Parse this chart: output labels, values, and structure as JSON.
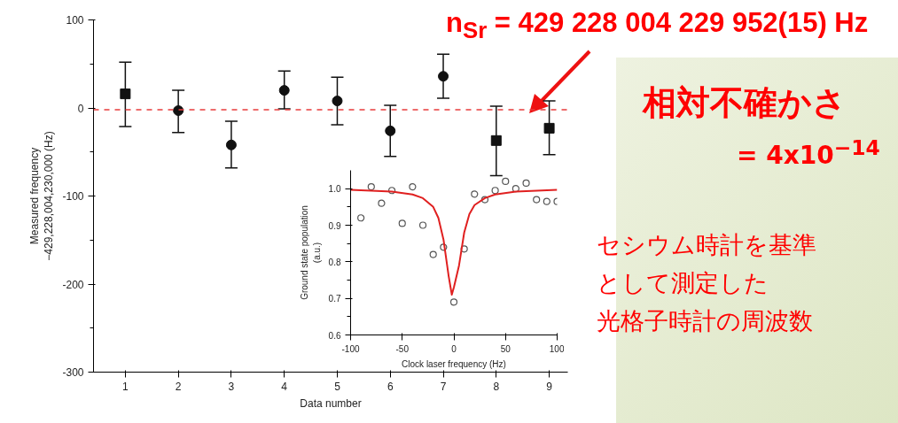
{
  "chart_data": [
    {
      "type": "scatter",
      "title": "n$_{Sr}$ = 429 228 004 229 952(15) Hz",
      "xlabel": "Data number",
      "ylabel": "Measured frequency\n−429,228,004,230,000 (Hz)",
      "xlim": [
        0.4,
        9.35
      ],
      "xticks": [
        1,
        2,
        3,
        4,
        5,
        6,
        7,
        8,
        9
      ],
      "ylim": [
        -300,
        100
      ],
      "yticks": [
        -300,
        -200,
        -100,
        0,
        100
      ],
      "grid": false,
      "series": [
        {
          "color": "#111111",
          "marker": "square",
          "x": [
            1,
            8,
            9
          ],
          "values": [
            16,
            -37,
            -23
          ],
          "errors": [
            [
              -21,
              52
            ],
            [
              -77,
              2
            ],
            [
              -53,
              8
            ]
          ]
        },
        {
          "color": "#111111",
          "marker": "circle",
          "x": [
            2,
            3,
            4,
            5,
            6,
            7
          ],
          "values": [
            -3,
            -42,
            20,
            8,
            -26,
            36
          ],
          "errors": [
            [
              -28,
              20
            ],
            [
              -68,
              -15
            ],
            [
              -1,
              42
            ],
            [
              -19,
              35
            ],
            [
              -55,
              3
            ],
            [
              11,
              61
            ]
          ]
        }
      ],
      "ref_lines": [
        {
          "axis": "y",
          "value": -2,
          "color": "#e83c3c",
          "line_style": "dashed"
        }
      ],
      "annotations": [
        "相対不確かさ",
        "= 4x10$^{−14}$",
        "セシウム時計を基準",
        "として測定した",
        "光格子時計の周波数"
      ]
    },
    {
      "type": "scatter",
      "xlabel": "Clock laser frequency (Hz)",
      "ylabel": "Ground state population\n(a.u.)",
      "xlim": [
        -100,
        100
      ],
      "xticks": [
        -100,
        -50,
        0,
        50,
        100
      ],
      "ylim": [
        0.6,
        1.05
      ],
      "yticks": [
        0.6,
        0.7,
        0.8,
        0.9,
        {
          "value": 1.0,
          "label": "1.0"
        }
      ],
      "grid": false,
      "series": [
        {
          "type": "scatter",
          "color": "#555555",
          "marker": "circle",
          "x": [
            -90,
            -80,
            -70,
            -60,
            -50,
            -40,
            -30,
            -20,
            -10,
            0,
            10,
            20,
            30,
            40,
            50,
            60,
            70,
            80,
            90,
            100
          ],
          "values": [
            0.92,
            1.005,
            0.96,
            0.995,
            0.905,
            1.005,
            0.9,
            0.82,
            0.84,
            0.69,
            0.835,
            0.985,
            0.97,
            0.995,
            1.02,
            1.0,
            1.015,
            0.97,
            0.965,
            0.965
          ]
        },
        {
          "type": "line",
          "color": "#e02020",
          "x": [
            -100,
            -60,
            -40,
            -30,
            -20,
            -15,
            -10,
            -5,
            -2,
            0,
            5,
            10,
            15,
            20,
            30,
            40,
            60,
            100
          ],
          "values": [
            0.997,
            0.992,
            0.984,
            0.974,
            0.95,
            0.92,
            0.86,
            0.76,
            0.71,
            0.73,
            0.79,
            0.88,
            0.93,
            0.955,
            0.974,
            0.984,
            0.992,
            0.997
          ]
        }
      ]
    }
  ]
}
